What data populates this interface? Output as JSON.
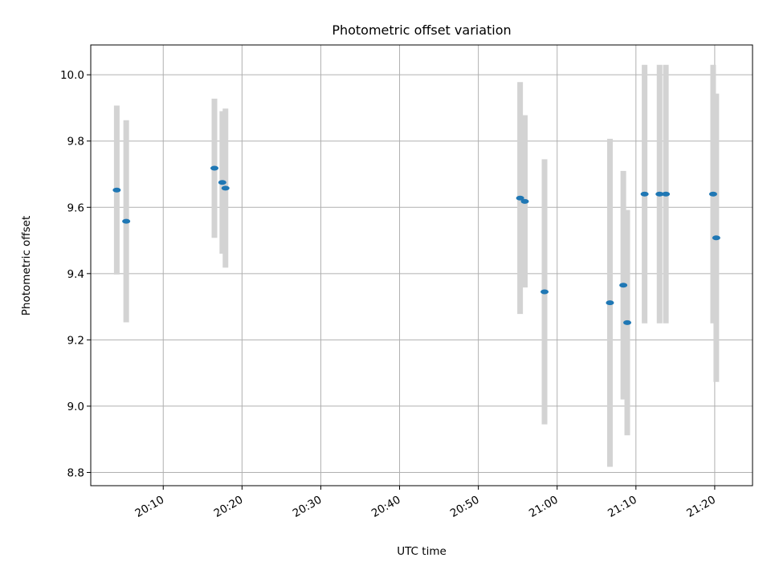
{
  "chart_data": {
    "type": "scatter",
    "title": "Photometric offset variation",
    "xlabel": "UTC time",
    "ylabel": "Photometric offset",
    "x_format": "HH:MM",
    "xlim": [
      "20:00:48",
      "21:24:48"
    ],
    "ylim": [
      8.76,
      10.09
    ],
    "x_ticks": [
      "20:10",
      "20:20",
      "20:30",
      "20:40",
      "20:50",
      "21:00",
      "21:10",
      "21:20"
    ],
    "y_ticks": [
      8.8,
      9.0,
      9.2,
      9.4,
      9.6,
      9.8,
      10.0
    ],
    "grid": true,
    "colors": {
      "marker": "#1f77b4",
      "errorbar": "#d3d3d3",
      "grid": "#b0b0b0"
    },
    "series": [
      {
        "points": [
          {
            "x": "20:04:06",
            "y": 9.652,
            "yerr": 0.255
          },
          {
            "x": "20:05:18",
            "y": 9.558,
            "yerr": 0.305
          },
          {
            "x": "20:16:30",
            "y": 9.718,
            "yerr": 0.21
          },
          {
            "x": "20:17:30",
            "y": 9.675,
            "yerr": 0.215
          },
          {
            "x": "20:17:54",
            "y": 9.658,
            "yerr": 0.24
          },
          {
            "x": "20:55:18",
            "y": 9.628,
            "yerr": 0.35
          },
          {
            "x": "20:55:54",
            "y": 9.618,
            "yerr": 0.26
          },
          {
            "x": "20:58:24",
            "y": 9.345,
            "yerr": 0.4
          },
          {
            "x": "21:06:42",
            "y": 9.312,
            "yerr": 0.495
          },
          {
            "x": "21:08:24",
            "y": 9.365,
            "yerr": 0.345
          },
          {
            "x": "21:08:54",
            "y": 9.252,
            "yerr": 0.34
          },
          {
            "x": "21:11:06",
            "y": 9.64,
            "yerr": 0.39
          },
          {
            "x": "21:13:00",
            "y": 9.64,
            "yerr": 0.39
          },
          {
            "x": "21:13:48",
            "y": 9.64,
            "yerr": 0.39
          },
          {
            "x": "21:19:48",
            "y": 9.64,
            "yerr": 0.39
          },
          {
            "x": "21:20:12",
            "y": 9.508,
            "yerr": 0.435
          }
        ]
      }
    ]
  }
}
